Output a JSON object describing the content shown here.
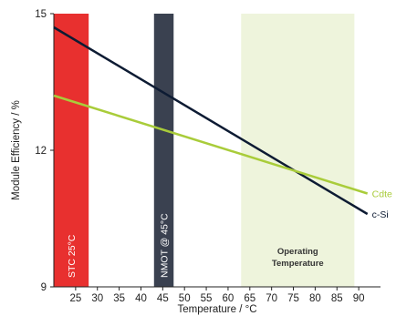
{
  "chart_data": {
    "type": "line",
    "xlabel": "Temperature / °C",
    "ylabel": "Module Efficiency / %",
    "xlim": [
      20,
      95
    ],
    "ylim": [
      9,
      15
    ],
    "xticks": [
      25,
      30,
      35,
      40,
      45,
      50,
      55,
      60,
      65,
      70,
      75,
      80,
      85,
      90
    ],
    "yticks": [
      9,
      12,
      15
    ],
    "grid": false,
    "series": [
      {
        "name": "c-Si",
        "color": "#0d1b33",
        "x": [
          20,
          92
        ],
        "y": [
          14.7,
          10.6
        ]
      },
      {
        "name": "Cdte",
        "color": "#a9cc3a",
        "x": [
          20,
          92
        ],
        "y": [
          13.2,
          11.05
        ]
      }
    ],
    "bands": [
      {
        "label": "STC 25°C",
        "x_range": [
          20,
          28
        ],
        "color": "#e8302f",
        "text_color": "#ffffff"
      },
      {
        "label": "NMOT @ 45°C",
        "x_range": [
          43,
          47.5
        ],
        "color": "#3a4150",
        "text_color": "#ffffff"
      },
      {
        "label_lines": [
          "Operating",
          "Temperature"
        ],
        "x_range": [
          63,
          89
        ],
        "color": "#eef4dc",
        "text_color": "#333333"
      }
    ]
  }
}
